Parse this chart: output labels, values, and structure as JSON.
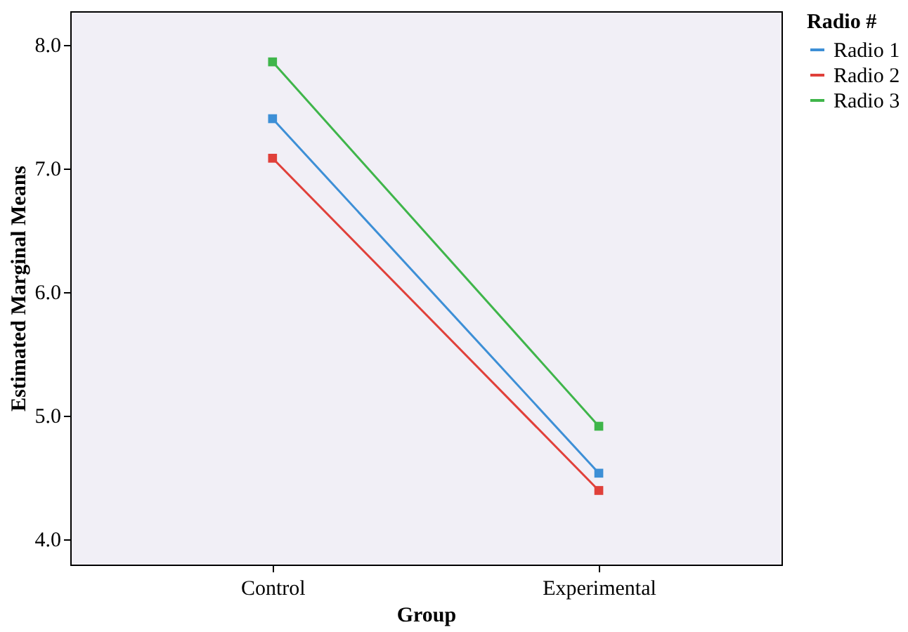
{
  "chart_data": {
    "type": "line",
    "xlabel": "Group",
    "ylabel": "Estimated Marginal Means",
    "legend_title": "Radio #",
    "categories": [
      "Control",
      "Experimental"
    ],
    "series": [
      {
        "name": "Radio 1",
        "color": "#3d8fd6",
        "values": [
          7.4,
          4.53
        ]
      },
      {
        "name": "Radio 2",
        "color": "#e0403a",
        "values": [
          7.08,
          4.39
        ]
      },
      {
        "name": "Radio 3",
        "color": "#3fb54a",
        "values": [
          7.86,
          4.91
        ]
      }
    ],
    "ylim": [
      3.79,
      8.27
    ],
    "yticks": [
      {
        "value": 4,
        "label": "4.0"
      },
      {
        "value": 5,
        "label": "5.0"
      },
      {
        "value": 6,
        "label": "6.0"
      },
      {
        "value": 7,
        "label": "7.0"
      },
      {
        "value": 8,
        "label": "8.0"
      }
    ],
    "marker": "square",
    "line_style": "solid",
    "grid": false,
    "legend": "top right"
  }
}
